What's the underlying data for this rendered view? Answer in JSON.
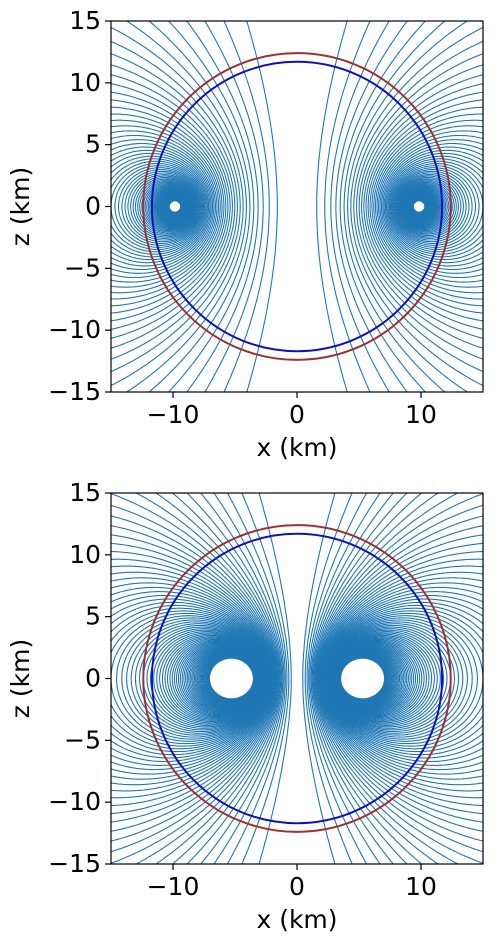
{
  "chart_data": [
    {
      "type": "contour",
      "xlabel": "x (km)",
      "ylabel": "z (km)",
      "xlim": [
        -15,
        15
      ],
      "ylim": [
        -15,
        15
      ],
      "xticks": [
        {
          "value": -10,
          "label": "−10"
        },
        0,
        10
      ],
      "yticks": [
        {
          "value": -15,
          "label": "−15"
        },
        {
          "value": -10,
          "label": "−10"
        },
        {
          "value": -5,
          "label": "−5"
        },
        0,
        5,
        10,
        15
      ],
      "loop_center_x": 9.8,
      "contour_color": "#1f77b4",
      "circles": [
        {
          "color": "#a03030",
          "radius": 12.4
        },
        {
          "color": "#1010c0",
          "radius": 11.7
        }
      ]
    },
    {
      "type": "contour",
      "xlabel": "x (km)",
      "ylabel": "z (km)",
      "xlim": [
        -15,
        15
      ],
      "ylim": [
        -15,
        15
      ],
      "xticks": [
        {
          "value": -10,
          "label": "−10"
        },
        0,
        10
      ],
      "yticks": [
        {
          "value": -15,
          "label": "−15"
        },
        {
          "value": -10,
          "label": "−10"
        },
        {
          "value": -5,
          "label": "−5"
        },
        0,
        5,
        10,
        15
      ],
      "loop_center_x": 4.6,
      "contour_color": "#1f77b4",
      "circles": [
        {
          "color": "#a03030",
          "radius": 12.4
        },
        {
          "color": "#1010c0",
          "radius": 11.7
        }
      ]
    }
  ]
}
